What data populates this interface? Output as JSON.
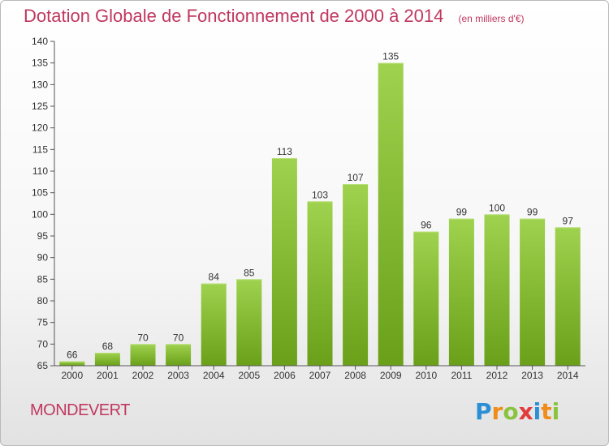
{
  "header": {
    "title": "Dotation Globale de Fonctionnement de 2000 à 2014",
    "unit": "(en milliers d'€)"
  },
  "footer": {
    "commune": "MONDEVERT",
    "logo": {
      "text": "Proxiti",
      "letters": [
        {
          "ch": "P",
          "color": "#2a8fd6"
        },
        {
          "ch": "r",
          "color": "#f08c1a"
        },
        {
          "ch": "o",
          "color": "#8ac43f"
        },
        {
          "ch": "x",
          "color": "#e23b3b"
        },
        {
          "ch": "i",
          "color": "#2a8fd6"
        },
        {
          "ch": "t",
          "color": "#f08c1a"
        },
        {
          "ch": "i",
          "color": "#8ac43f"
        }
      ]
    }
  },
  "chart_data": {
    "type": "bar",
    "title": "Dotation Globale de Fonctionnement de 2000 à 2014",
    "subtitle": "(en milliers d'€)",
    "xlabel": "",
    "ylabel": "",
    "categories": [
      "2000",
      "2001",
      "2002",
      "2003",
      "2004",
      "2005",
      "2006",
      "2007",
      "2008",
      "2009",
      "2010",
      "2011",
      "2012",
      "2013",
      "2014"
    ],
    "values": [
      66,
      68,
      70,
      70,
      84,
      85,
      113,
      103,
      107,
      135,
      96,
      99,
      100,
      99,
      97
    ],
    "ylim": [
      65,
      140
    ],
    "yticks": [
      65,
      70,
      75,
      80,
      85,
      90,
      95,
      100,
      105,
      110,
      115,
      120,
      125,
      130,
      135,
      140
    ],
    "grid": false,
    "legend": "none",
    "colors": {
      "bar_light": "#9fd24e",
      "bar_dark": "#6aa019",
      "axis": "#555555",
      "text": "#333333"
    }
  }
}
